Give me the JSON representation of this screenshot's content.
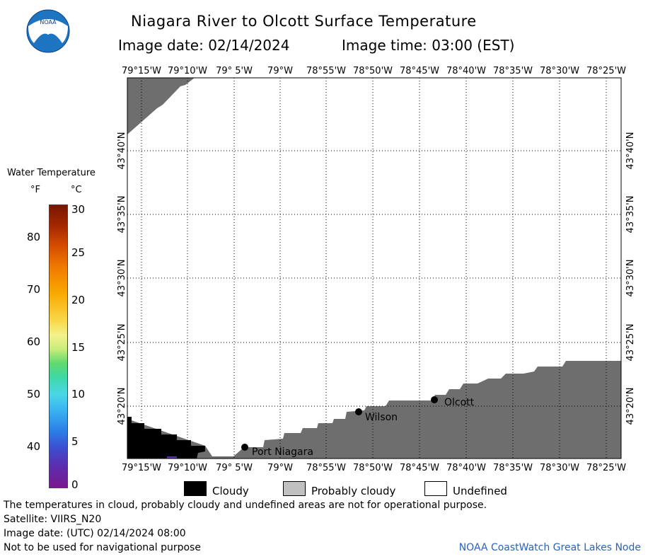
{
  "header": {
    "title": "Niagara River to Olcott Surface Temperature",
    "image_date": "Image date: 02/14/2024",
    "image_time": "Image time: 03:00 (EST)"
  },
  "logo": {
    "text": "NOAA",
    "icon": "noaa-logo-icon"
  },
  "map": {
    "lon_labels": [
      "79°15'W",
      "79°10'W",
      "79° 5'W",
      "79°W",
      "78°55'W",
      "78°50'W",
      "78°45'W",
      "78°40'W",
      "78°35'W",
      "78°30'W",
      "78°25'W"
    ],
    "lat_labels": [
      "43°40'N",
      "43°35'N",
      "43°30'N",
      "43°25'N",
      "43°20'N"
    ],
    "places": [
      {
        "name": "Port Niagara"
      },
      {
        "name": "Wilson"
      },
      {
        "name": "Olcott"
      }
    ],
    "colors": {
      "land": "#6e6e6e",
      "cloud": "#000000",
      "water": "#ffffff",
      "grid": "#000000"
    }
  },
  "color_scale": {
    "title": "Water Temperature",
    "unit_f": "°F",
    "unit_c": "°C",
    "f_ticks": [
      "80",
      "70",
      "60",
      "50",
      "40"
    ],
    "c_ticks": [
      "30",
      "25",
      "20",
      "15",
      "10",
      "5",
      "0"
    ]
  },
  "legend": {
    "cloudy": "Cloudy",
    "probably_cloudy": "Probably cloudy",
    "undefined": "Undefined",
    "colors": {
      "cloudy": "#000000",
      "probably_cloudy": "#c0c0c0",
      "undefined": "#ffffff"
    }
  },
  "footer": {
    "disclaimer": "The temperatures in cloud, probably cloudy and undefined areas are not for operational purpose.",
    "satellite": "Satellite: VIIRS_N20",
    "utc_date": "Image date: (UTC) 02/14/2024  08:00",
    "nav_warning": "Not to be used for navigational purpose",
    "credit": "NOAA CoastWatch Great Lakes Node"
  }
}
